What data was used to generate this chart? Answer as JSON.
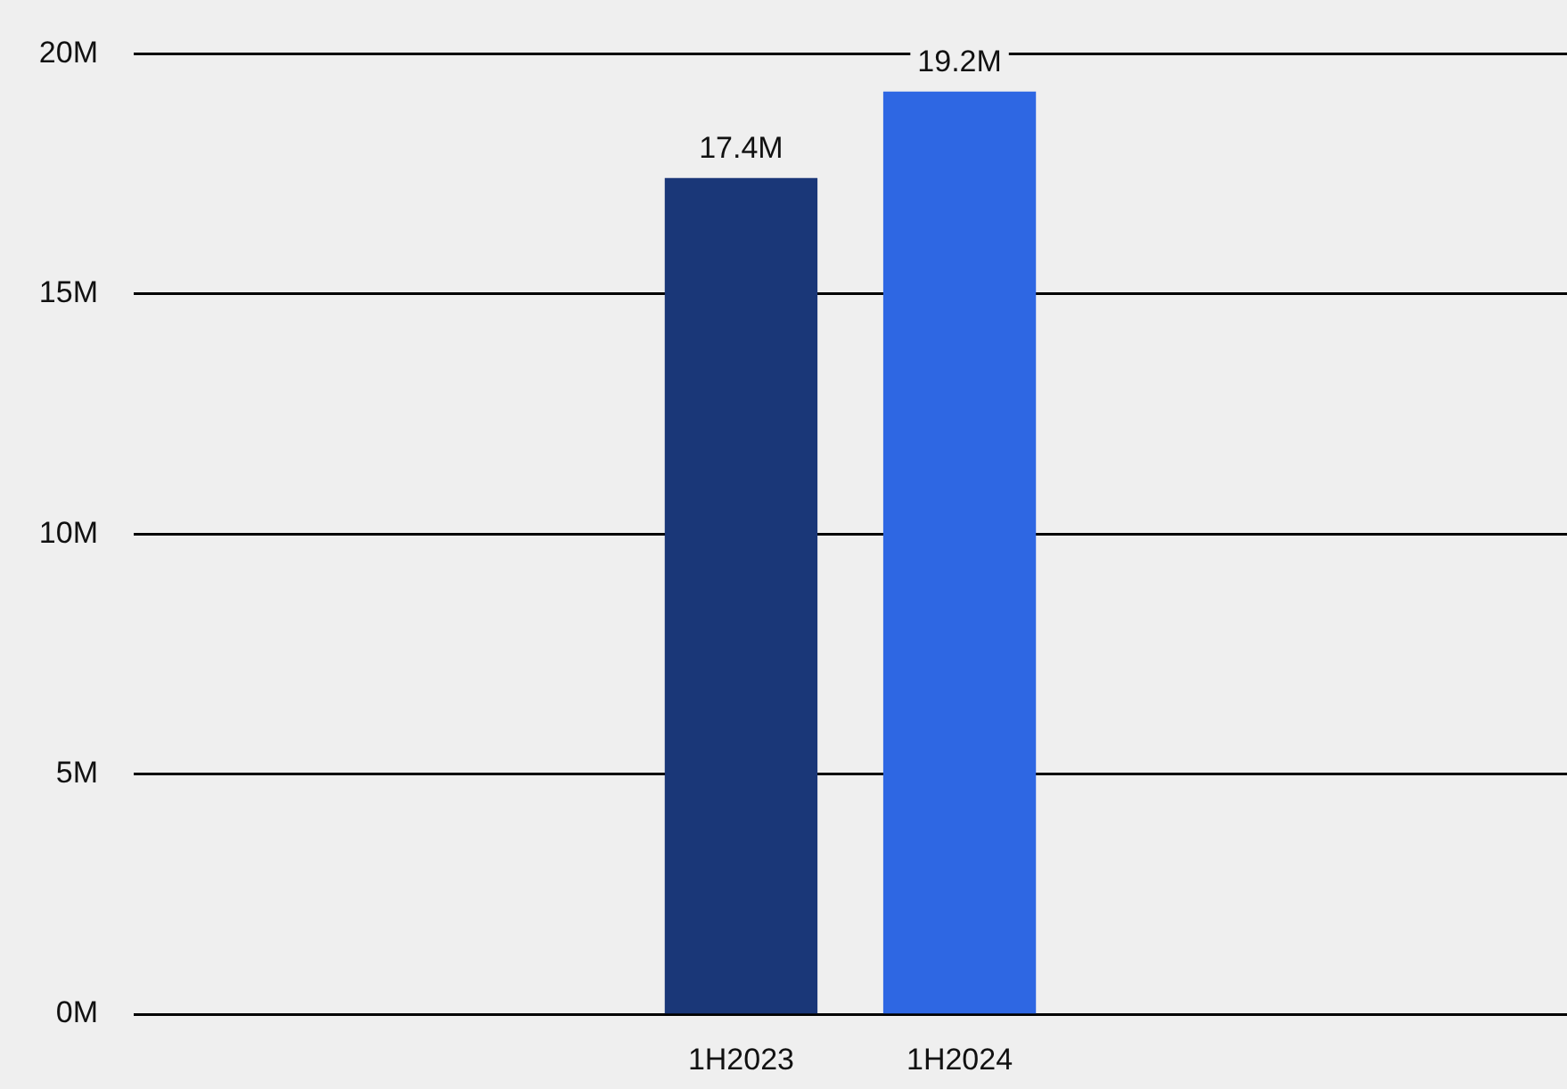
{
  "chart_data": {
    "type": "bar",
    "categories": [
      "1H2023",
      "1H2024"
    ],
    "values": [
      17.4,
      19.2
    ],
    "colors": [
      "#1a3778",
      "#2e67e3"
    ],
    "value_labels": [
      "17.4M",
      "19.2M"
    ],
    "ylim": [
      0,
      20
    ],
    "yticks": [
      {
        "value": 0,
        "label": "0M"
      },
      {
        "value": 5,
        "label": "5M"
      },
      {
        "value": 10,
        "label": "10M"
      },
      {
        "value": 15,
        "label": "15M"
      },
      {
        "value": 20,
        "label": "20M"
      }
    ],
    "grid": "y",
    "legend": false
  }
}
